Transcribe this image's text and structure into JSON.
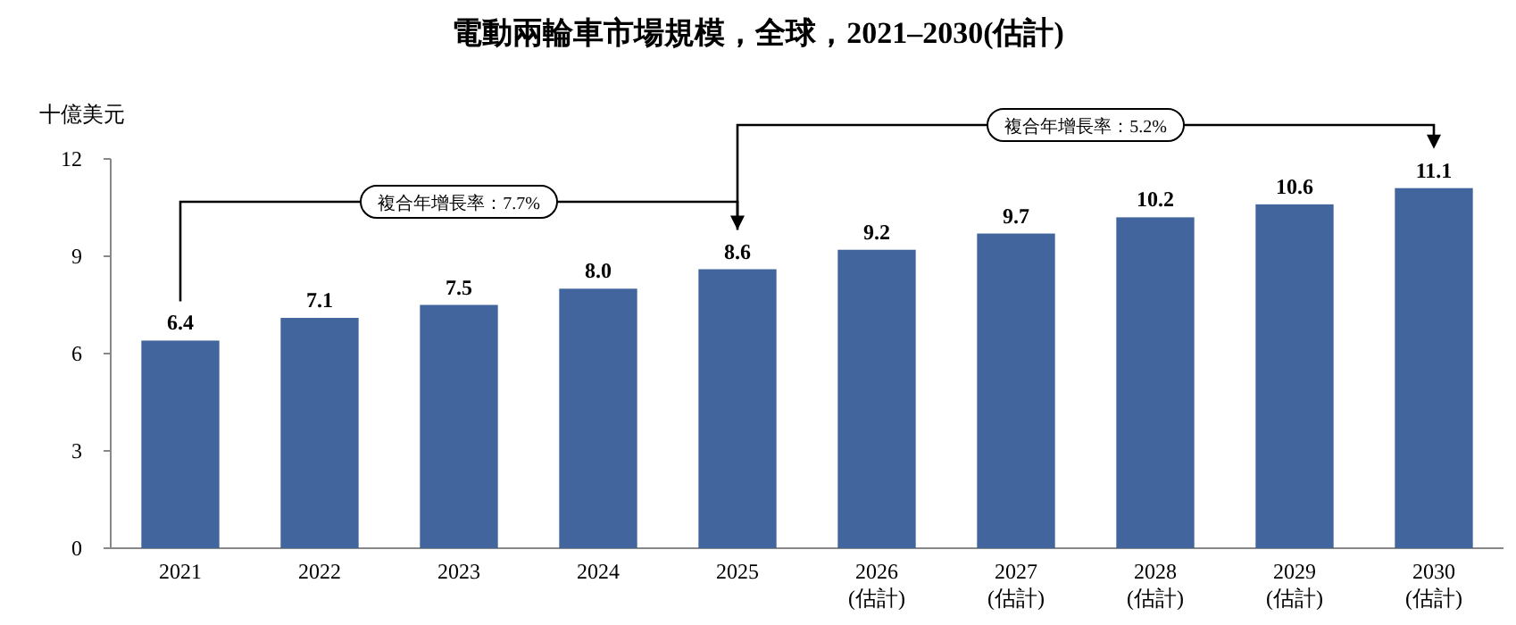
{
  "chart_data": {
    "type": "bar",
    "title": "電動兩輪車市場規模，全球，2021–2030(估計)",
    "ylabel": "十億美元",
    "categories": [
      "2021",
      "2022",
      "2023",
      "2024",
      "2025",
      "2026\n(估計)",
      "2027\n(估計)",
      "2028\n(估計)",
      "2029\n(估計)",
      "2030\n(估計)"
    ],
    "values": [
      6.4,
      7.1,
      7.5,
      8.0,
      8.6,
      9.2,
      9.7,
      10.2,
      10.6,
      11.1
    ],
    "color": "#41659c",
    "ylim": [
      0,
      12
    ],
    "yticks": [
      0,
      3,
      6,
      9,
      12
    ],
    "value_labels": [
      "6.4",
      "7.1",
      "7.5",
      "8.0",
      "8.6",
      "9.2",
      "9.7",
      "10.2",
      "10.6",
      "11.1"
    ],
    "grid": false,
    "annotations": [
      "複合年增長率：7.7%",
      "複合年增長率：5.2%"
    ]
  }
}
